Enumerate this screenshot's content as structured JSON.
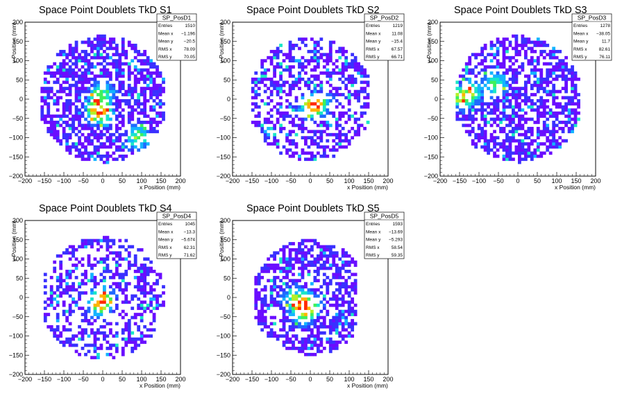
{
  "chart_data": [
    {
      "type": "heatmap",
      "title": "Space Point Doublets TkD S1",
      "xlabel": "x Position (mm)",
      "ylabel": "y Position (mm)",
      "xlim": [
        -200,
        200
      ],
      "ylim": [
        -200,
        200
      ],
      "x_ticks": [
        "−200",
        "−150",
        "−100",
        "−50",
        "0",
        "50",
        "100",
        "150",
        "200"
      ],
      "y_ticks": [
        "−200",
        "−150",
        "−100",
        "−50",
        "0",
        "50",
        "100",
        "150",
        "200"
      ],
      "stats": {
        "name": "SP_PosD1",
        "rows": [
          {
            "label": "Entries",
            "value": "1510"
          },
          {
            "label": "Mean x",
            "value": "−1.196"
          },
          {
            "label": "Mean y",
            "value": "−20.5"
          },
          {
            "label": "RMS x",
            "value": "78.09"
          },
          {
            "label": "RMS y",
            "value": "70.05"
          }
        ]
      },
      "distribution": {
        "radius": 165,
        "occupancy": 0.62,
        "hotspots": [
          [
            0,
            -40
          ],
          [
            0,
            20
          ],
          [
            -20,
            -20
          ],
          [
            90,
            -100
          ]
        ],
        "seed": 11,
        "min_x": -160,
        "max_x": 160
      }
    },
    {
      "type": "heatmap",
      "title": "Space Point Doublets TkD S2",
      "xlabel": "x Position (mm)",
      "ylabel": "y Position (mm)",
      "xlim": [
        -200,
        200
      ],
      "ylim": [
        -200,
        200
      ],
      "x_ticks": [
        "−200",
        "−150",
        "−100",
        "−50",
        "0",
        "50",
        "100",
        "150",
        "200"
      ],
      "y_ticks": [
        "−200",
        "−150",
        "−100",
        "−50",
        "0",
        "50",
        "100",
        "150",
        "200"
      ],
      "stats": {
        "name": "SP_PosD2",
        "rows": [
          {
            "label": "Entries",
            "value": "1219"
          },
          {
            "label": "Mean x",
            "value": "11.08"
          },
          {
            "label": "Mean y",
            "value": "−15.4"
          },
          {
            "label": "RMS x",
            "value": "67.57"
          },
          {
            "label": "RMS y",
            "value": "66.71"
          }
        ]
      },
      "distribution": {
        "radius": 160,
        "occupancy": 0.5,
        "hotspots": [
          [
            20,
            -10
          ],
          [
            0,
            -20
          ]
        ],
        "seed": 23,
        "min_x": -150,
        "max_x": 160
      }
    },
    {
      "type": "heatmap",
      "title": "Space Point Doublets TkD S3",
      "xlabel": "x Position (mm)",
      "ylabel": "y Position (mm)",
      "xlim": [
        -200,
        200
      ],
      "ylim": [
        -200,
        200
      ],
      "x_ticks": [
        "−200",
        "−150",
        "−100",
        "−50",
        "0",
        "50",
        "100",
        "150",
        "200"
      ],
      "y_ticks": [
        "−200",
        "−150",
        "−100",
        "−50",
        "0",
        "50",
        "100",
        "150",
        "200"
      ],
      "stats": {
        "name": "SP_PosD3",
        "rows": [
          {
            "label": "Entries",
            "value": "1278"
          },
          {
            "label": "Mean x",
            "value": "−38.05"
          },
          {
            "label": "Mean y",
            "value": "11.7"
          },
          {
            "label": "RMS x",
            "value": "82.61"
          },
          {
            "label": "RMS y",
            "value": "76.11"
          }
        ]
      },
      "distribution": {
        "radius": 165,
        "occupancy": 0.6,
        "hotspots": [
          [
            -150,
            0
          ],
          [
            -120,
            20
          ],
          [
            -60,
            40
          ]
        ],
        "seed": 37,
        "min_x": -160,
        "max_x": 160
      }
    },
    {
      "type": "heatmap",
      "title": "Space Point Doublets TkD S4",
      "xlabel": "x Position (mm)",
      "ylabel": "y Position (mm)",
      "xlim": [
        -200,
        200
      ],
      "ylim": [
        -200,
        200
      ],
      "x_ticks": [
        "−200",
        "−150",
        "−100",
        "−50",
        "0",
        "50",
        "100",
        "150",
        "200"
      ],
      "y_ticks": [
        "−200",
        "−150",
        "−100",
        "−50",
        "0",
        "50",
        "100",
        "150",
        "200"
      ],
      "stats": {
        "name": "SP_PosD4",
        "rows": [
          {
            "label": "Entries",
            "value": "1045"
          },
          {
            "label": "Mean x",
            "value": "−13.3"
          },
          {
            "label": "Mean y",
            "value": "−5.674"
          },
          {
            "label": "RMS x",
            "value": "62.31"
          },
          {
            "label": "RMS y",
            "value": "71.62"
          }
        ]
      },
      "distribution": {
        "radius": 160,
        "occupancy": 0.42,
        "hotspots": [
          [
            -10,
            -20
          ],
          [
            0,
            0
          ]
        ],
        "seed": 41,
        "min_x": -150,
        "max_x": 160
      }
    },
    {
      "type": "heatmap",
      "title": "Space Point Doublets TkD S5",
      "xlabel": "x Position (mm)",
      "ylabel": "y Position (mm)",
      "xlim": [
        -200,
        200
      ],
      "ylim": [
        -200,
        200
      ],
      "x_ticks": [
        "−200",
        "−150",
        "−100",
        "−50",
        "0",
        "50",
        "100",
        "150",
        "200"
      ],
      "y_ticks": [
        "−200",
        "−150",
        "−100",
        "−50",
        "0",
        "50",
        "100",
        "150",
        "200"
      ],
      "stats": {
        "name": "SP_PosD5",
        "rows": [
          {
            "label": "Entries",
            "value": "1593"
          },
          {
            "label": "Mean x",
            "value": "−13.69"
          },
          {
            "label": "Mean y",
            "value": "−5.293"
          },
          {
            "label": "RMS x",
            "value": "58.54"
          },
          {
            "label": "RMS y",
            "value": "59.35"
          }
        ]
      },
      "distribution": {
        "radius": 150,
        "occupancy": 0.55,
        "hotspots": [
          [
            -40,
            0
          ],
          [
            0,
            -20
          ],
          [
            -20,
            -40
          ]
        ],
        "seed": 53,
        "min_x": -140,
        "max_x": 120
      }
    }
  ],
  "palette": [
    "#6a0dff",
    "#3a30ff",
    "#1f6aff",
    "#13b4ff",
    "#19e6c8",
    "#3ff05a",
    "#b4f028",
    "#ffb400",
    "#ff2a00"
  ]
}
